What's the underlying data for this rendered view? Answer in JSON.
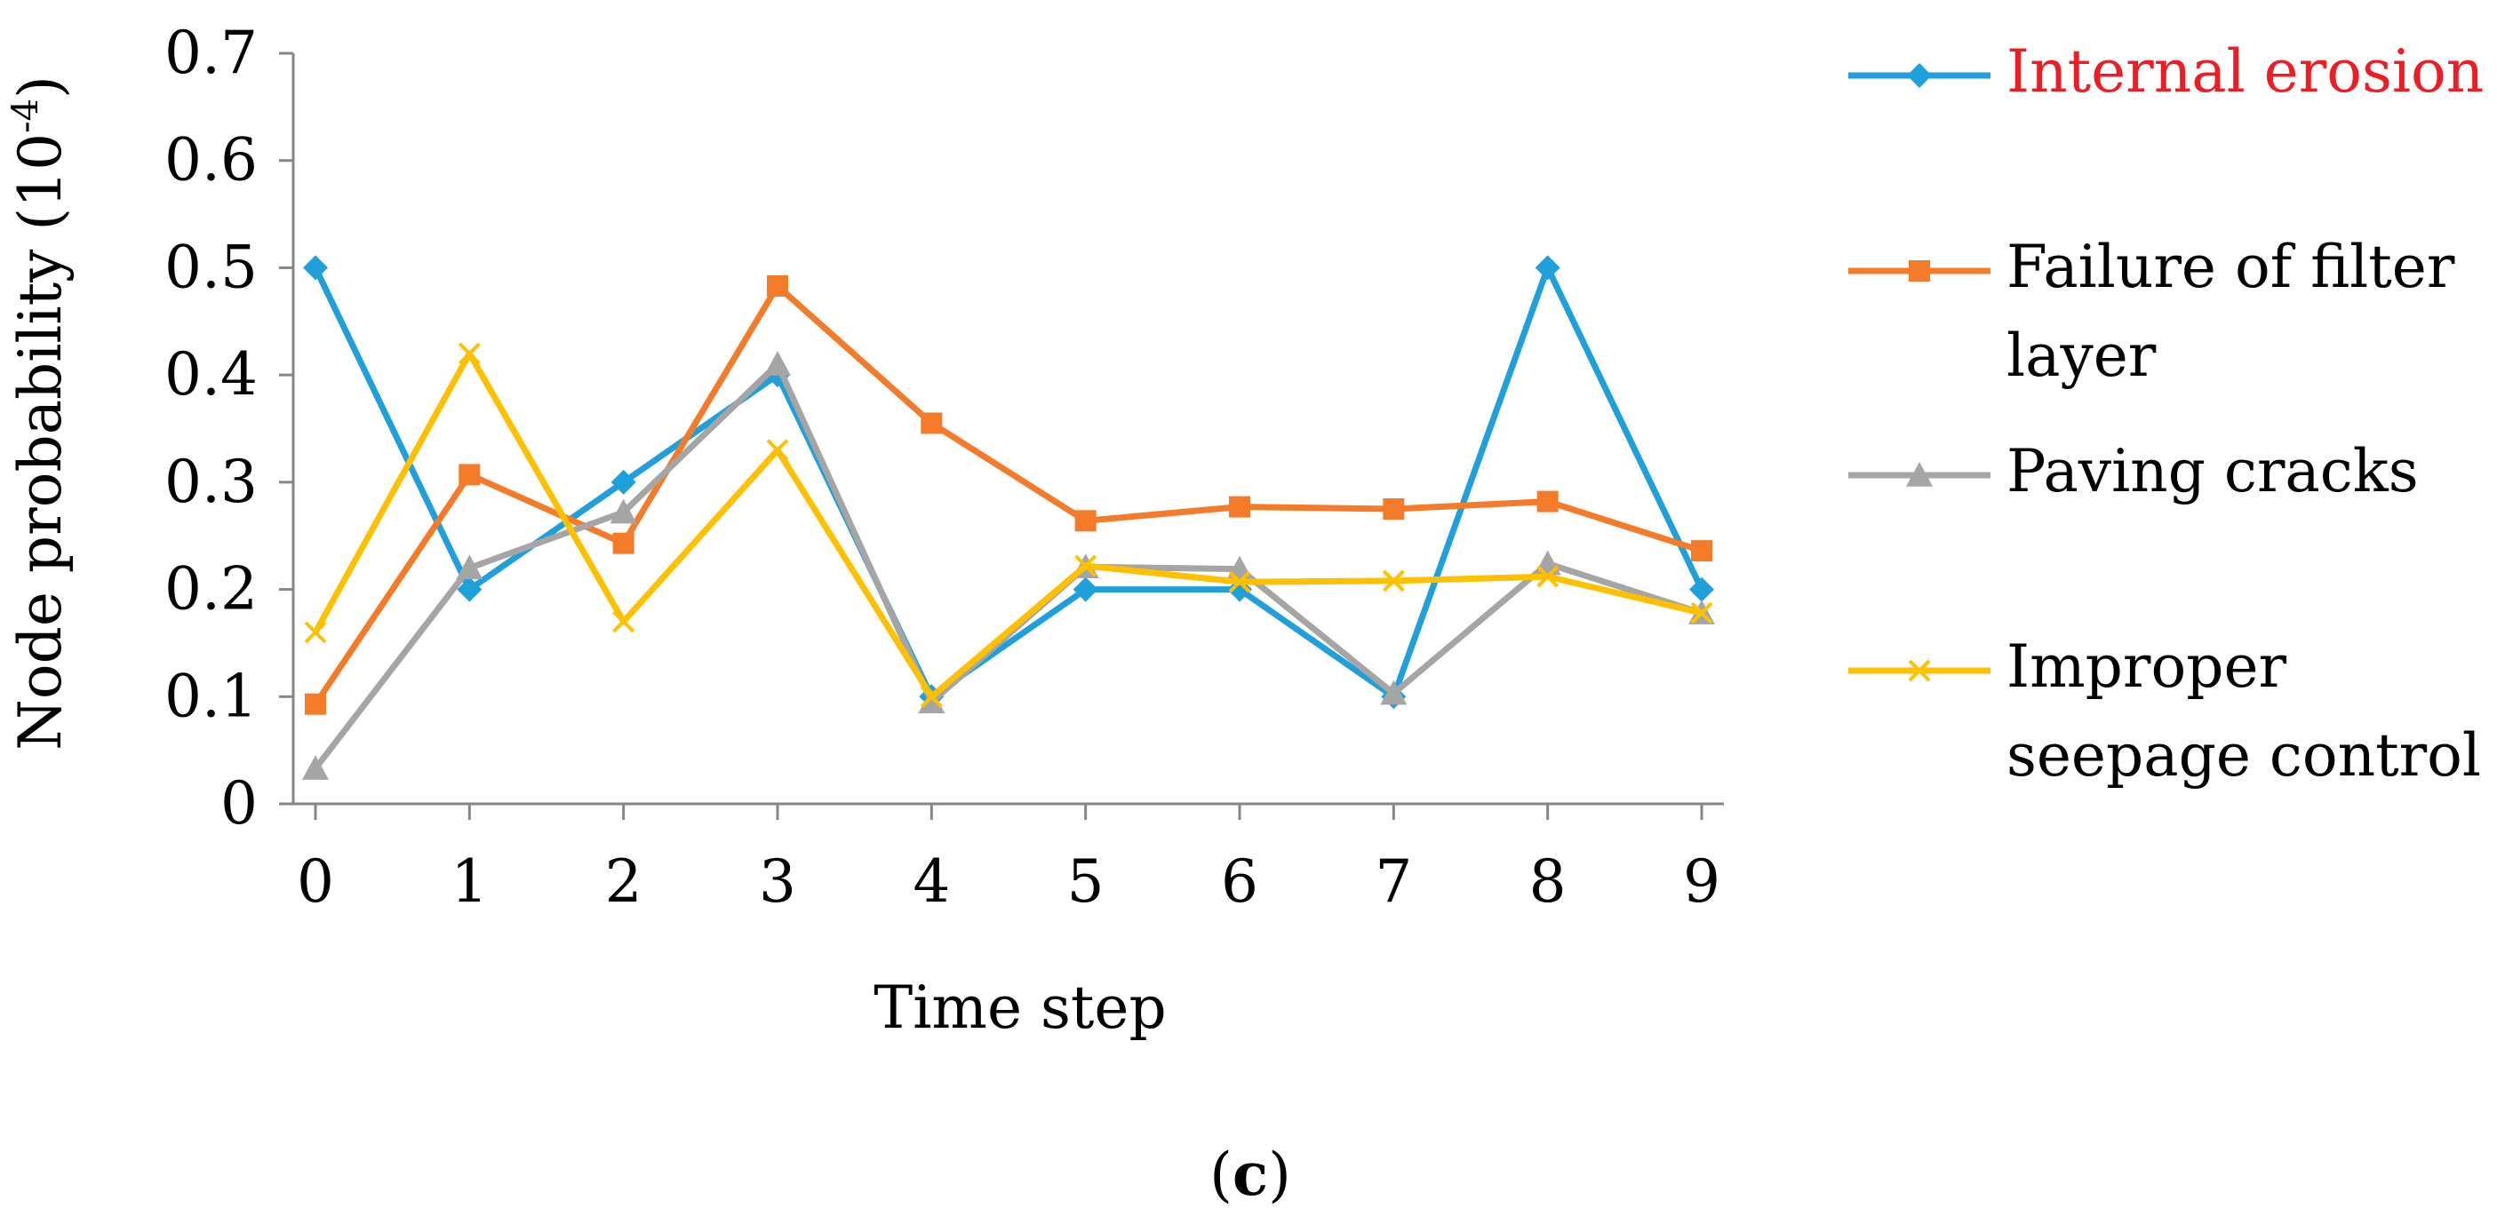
{
  "chart_data": {
    "type": "line",
    "xlabel": "Time step",
    "ylabel": "Node probability (10",
    "ylabel_exponent": "-4",
    "ylabel_close": ")",
    "caption_open": "(",
    "caption_letter": "c",
    "caption_close": ")",
    "x": [
      0,
      1,
      2,
      3,
      4,
      5,
      6,
      7,
      8,
      9
    ],
    "x_tick_labels": [
      "0",
      "1",
      "2",
      "3",
      "4",
      "5",
      "6",
      "7",
      "8",
      "9"
    ],
    "ylim": [
      0,
      0.7
    ],
    "y_ticks": [
      0,
      0.1,
      0.2,
      0.3,
      0.4,
      0.5,
      0.6,
      0.7
    ],
    "y_tick_labels": [
      "0",
      "0.1",
      "0.2",
      "0.3",
      "0.4",
      "0.5",
      "0.6",
      "0.7"
    ],
    "grid": false,
    "legend_position": "right",
    "series": [
      {
        "name": "Internal erosion",
        "legend_lines": [
          "Internal erosion"
        ],
        "color": "#1fa0db",
        "label_color": "#ee1c24",
        "marker": "diamond",
        "values": [
          0.5,
          0.2,
          0.3,
          0.4,
          0.1,
          0.2,
          0.2,
          0.1,
          0.5,
          0.2
        ]
      },
      {
        "name": "Failure of filter layer",
        "legend_lines": [
          "Failure of filter",
          "layer"
        ],
        "color": "#f47b2a",
        "label_color": "#000000",
        "marker": "square",
        "values": [
          0.093,
          0.307,
          0.243,
          0.483,
          0.355,
          0.264,
          0.277,
          0.275,
          0.282,
          0.236
        ]
      },
      {
        "name": "Paving cracks",
        "legend_lines": [
          "Paving cracks"
        ],
        "color": "#a5a5a5",
        "label_color": "#000000",
        "marker": "triangle",
        "values": [
          0.033,
          0.22,
          0.272,
          0.41,
          0.095,
          0.221,
          0.219,
          0.103,
          0.224,
          0.178
        ]
      },
      {
        "name": "Improper seepage control",
        "legend_lines": [
          "Improper",
          "seepage control"
        ],
        "color": "#ffc000",
        "label_color": "#000000",
        "marker": "x",
        "values": [
          0.16,
          0.42,
          0.17,
          0.33,
          0.1,
          0.222,
          0.207,
          0.208,
          0.212,
          0.178
        ]
      }
    ]
  }
}
